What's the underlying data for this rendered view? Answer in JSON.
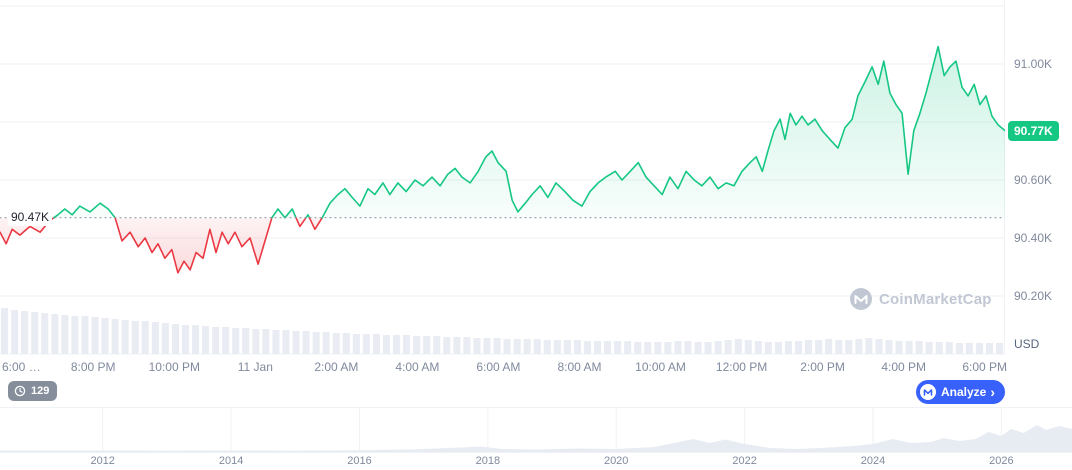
{
  "chart": {
    "baseline_label": "90.47K",
    "last_price_label": "90.77K",
    "unit_label": "USD",
    "watermark_text": "CoinMarketCap",
    "colors": {
      "up": "#16c784",
      "down": "#ea3943",
      "grid": "#eff2f5",
      "axis_text": "#808a9d",
      "baseline_text": "#222531",
      "volume_bar": "#e9edf3",
      "nav_fill": "#e7ebf2",
      "analyze_bg": "#3861fb",
      "watchers_bg": "rgba(100,110,128,0.78)",
      "watermark": "#c1c8d3",
      "badge_bg": "#16c784"
    }
  },
  "controls": {
    "watchers_count": "129",
    "analyze_label": "Analyze",
    "analyze_chevron": "›"
  },
  "icons": {
    "watchers_badge": "clock-icon",
    "analyze_button": "cmc-logo-icon",
    "analyze_chevron": "chevron-right-icon",
    "watermark": "cmc-logo-icon"
  },
  "chart_data": [
    {
      "type": "area",
      "name": "price",
      "title": "",
      "x_unit": "hours since Jan 10 6:00 PM",
      "xlim": [
        -0.3,
        24.5
      ],
      "ylim": [
        90.0,
        91.2
      ],
      "baseline": 90.47,
      "last": 90.77,
      "gridlines": [
        91.2,
        91.0,
        90.8,
        90.6,
        90.4,
        90.2,
        90.0
      ],
      "y_ticks": [
        {
          "v": 91.0,
          "label": "91.00K"
        },
        {
          "v": 90.6,
          "label": "90.60K"
        },
        {
          "v": 90.4,
          "label": "90.40K"
        },
        {
          "v": 90.2,
          "label": "90.20K"
        }
      ],
      "x_ticks": [
        {
          "t": 0,
          "label": "6:00 …",
          "align": "left"
        },
        {
          "t": 2,
          "label": "8:00 PM"
        },
        {
          "t": 4,
          "label": "10:00 PM"
        },
        {
          "t": 6,
          "label": "11 Jan"
        },
        {
          "t": 8,
          "label": "2:00 AM"
        },
        {
          "t": 10,
          "label": "4:00 AM"
        },
        {
          "t": 12,
          "label": "6:00 AM"
        },
        {
          "t": 14,
          "label": "8:00 AM"
        },
        {
          "t": 16,
          "label": "10:00 AM"
        },
        {
          "t": 18,
          "label": "12:00 PM"
        },
        {
          "t": 20,
          "label": "2:00 PM"
        },
        {
          "t": 22,
          "label": "4:00 PM"
        },
        {
          "t": 24,
          "label": "6:00 PM"
        }
      ],
      "points": [
        [
          -0.3,
          90.42
        ],
        [
          -0.15,
          90.38
        ],
        [
          0,
          90.43
        ],
        [
          0.19,
          90.41
        ],
        [
          0.44,
          90.44
        ],
        [
          0.69,
          90.42
        ],
        [
          0.93,
          90.46
        ],
        [
          1.13,
          90.48
        ],
        [
          1.3,
          90.5
        ],
        [
          1.48,
          90.48
        ],
        [
          1.67,
          90.51
        ],
        [
          1.92,
          90.49
        ],
        [
          2.17,
          90.52
        ],
        [
          2.37,
          90.5
        ],
        [
          2.54,
          90.47
        ],
        [
          2.71,
          90.39
        ],
        [
          2.91,
          90.42
        ],
        [
          3.11,
          90.37
        ],
        [
          3.28,
          90.4
        ],
        [
          3.45,
          90.35
        ],
        [
          3.6,
          90.38
        ],
        [
          3.77,
          90.33
        ],
        [
          3.94,
          90.36
        ],
        [
          4.09,
          90.28
        ],
        [
          4.24,
          90.32
        ],
        [
          4.39,
          90.29
        ],
        [
          4.54,
          90.35
        ],
        [
          4.71,
          90.33
        ],
        [
          4.88,
          90.43
        ],
        [
          5.03,
          90.35
        ],
        [
          5.18,
          90.42
        ],
        [
          5.33,
          90.38
        ],
        [
          5.5,
          90.42
        ],
        [
          5.67,
          90.37
        ],
        [
          5.87,
          90.4
        ],
        [
          6.07,
          90.31
        ],
        [
          6.24,
          90.39
        ],
        [
          6.41,
          90.47
        ],
        [
          6.56,
          90.5
        ],
        [
          6.73,
          90.47
        ],
        [
          6.91,
          90.5
        ],
        [
          7.1,
          90.44
        ],
        [
          7.3,
          90.48
        ],
        [
          7.47,
          90.43
        ],
        [
          7.65,
          90.47
        ],
        [
          7.84,
          90.52
        ],
        [
          8.04,
          90.55
        ],
        [
          8.21,
          90.57
        ],
        [
          8.39,
          90.54
        ],
        [
          8.58,
          90.51
        ],
        [
          8.78,
          90.57
        ],
        [
          8.95,
          90.55
        ],
        [
          9.15,
          90.59
        ],
        [
          9.32,
          90.55
        ],
        [
          9.52,
          90.59
        ],
        [
          9.72,
          90.56
        ],
        [
          9.94,
          90.6
        ],
        [
          10.14,
          90.58
        ],
        [
          10.36,
          90.61
        ],
        [
          10.56,
          90.58
        ],
        [
          10.75,
          90.62
        ],
        [
          10.93,
          90.64
        ],
        [
          11.1,
          90.61
        ],
        [
          11.3,
          90.59
        ],
        [
          11.5,
          90.63
        ],
        [
          11.69,
          90.68
        ],
        [
          11.84,
          90.7
        ],
        [
          11.99,
          90.66
        ],
        [
          12.19,
          90.63
        ],
        [
          12.34,
          90.53
        ],
        [
          12.48,
          90.49
        ],
        [
          12.66,
          90.52
        ],
        [
          12.83,
          90.55
        ],
        [
          13.03,
          90.58
        ],
        [
          13.22,
          90.54
        ],
        [
          13.42,
          90.59
        ],
        [
          13.64,
          90.56
        ],
        [
          13.84,
          90.53
        ],
        [
          14.06,
          90.51
        ],
        [
          14.26,
          90.56
        ],
        [
          14.46,
          90.59
        ],
        [
          14.65,
          90.61
        ],
        [
          14.88,
          90.63
        ],
        [
          15.05,
          90.6
        ],
        [
          15.25,
          90.63
        ],
        [
          15.45,
          90.66
        ],
        [
          15.64,
          90.61
        ],
        [
          15.84,
          90.58
        ],
        [
          16.04,
          90.55
        ],
        [
          16.23,
          90.61
        ],
        [
          16.43,
          90.57
        ],
        [
          16.63,
          90.63
        ],
        [
          16.83,
          90.6
        ],
        [
          17.02,
          90.58
        ],
        [
          17.22,
          90.61
        ],
        [
          17.42,
          90.57
        ],
        [
          17.62,
          90.59
        ],
        [
          17.81,
          90.58
        ],
        [
          18.01,
          90.63
        ],
        [
          18.21,
          90.66
        ],
        [
          18.36,
          90.68
        ],
        [
          18.51,
          90.63
        ],
        [
          18.65,
          90.7
        ],
        [
          18.8,
          90.77
        ],
        [
          18.95,
          90.81
        ],
        [
          19.07,
          90.74
        ],
        [
          19.2,
          90.83
        ],
        [
          19.34,
          90.79
        ],
        [
          19.49,
          90.82
        ],
        [
          19.64,
          90.79
        ],
        [
          19.81,
          90.81
        ],
        [
          19.99,
          90.77
        ],
        [
          20.18,
          90.74
        ],
        [
          20.38,
          90.71
        ],
        [
          20.55,
          90.78
        ],
        [
          20.73,
          90.81
        ],
        [
          20.87,
          90.89
        ],
        [
          21.05,
          90.94
        ],
        [
          21.22,
          90.99
        ],
        [
          21.37,
          90.93
        ],
        [
          21.51,
          91.01
        ],
        [
          21.66,
          90.9
        ],
        [
          21.81,
          90.86
        ],
        [
          21.96,
          90.83
        ],
        [
          22.11,
          90.62
        ],
        [
          22.25,
          90.77
        ],
        [
          22.4,
          90.83
        ],
        [
          22.55,
          90.9
        ],
        [
          22.7,
          90.98
        ],
        [
          22.85,
          91.06
        ],
        [
          23,
          90.96
        ],
        [
          23.14,
          90.99
        ],
        [
          23.29,
          91.01
        ],
        [
          23.44,
          90.92
        ],
        [
          23.59,
          90.89
        ],
        [
          23.74,
          90.93
        ],
        [
          23.88,
          90.86
        ],
        [
          24.03,
          90.89
        ],
        [
          24.18,
          90.82
        ],
        [
          24.33,
          90.79
        ],
        [
          24.5,
          90.77
        ]
      ]
    },
    {
      "type": "bar",
      "name": "volume",
      "y_unit": "relative height (px, no axis shown)",
      "values": [
        46,
        44,
        43,
        42,
        41,
        40,
        39,
        38,
        38,
        37,
        36,
        35,
        34,
        33,
        33,
        32,
        31,
        30,
        29,
        29,
        28,
        27,
        27,
        26,
        26,
        25,
        25,
        24,
        24,
        23,
        23,
        22,
        22,
        21,
        21,
        20,
        20,
        20,
        19,
        19,
        19,
        18,
        18,
        18,
        17,
        17,
        17,
        16,
        16,
        16,
        15,
        15,
        15,
        15,
        14,
        14,
        14,
        14,
        13,
        13,
        13,
        13,
        13,
        12,
        12,
        12,
        12,
        13,
        13,
        12,
        12,
        13,
        14,
        15,
        14,
        13,
        12,
        12,
        13,
        13,
        14,
        14,
        15,
        14,
        14,
        15,
        16,
        15,
        14,
        13,
        13,
        13,
        12,
        12,
        12,
        11,
        11,
        11,
        11,
        11
      ]
    },
    {
      "type": "area",
      "name": "all-time-history-navigator",
      "x_unit": "year",
      "xlim": [
        2010.4,
        2027.1
      ],
      "y_unit": "relative height (px, no axis shown)",
      "x_ticks": [
        2012,
        2014,
        2016,
        2018,
        2020,
        2022,
        2024,
        2026
      ],
      "points": [
        [
          2010.4,
          1.5
        ],
        [
          2012,
          1.5
        ],
        [
          2013,
          1.2
        ],
        [
          2014,
          1.5
        ],
        [
          2015,
          1.2
        ],
        [
          2016,
          1.8
        ],
        [
          2016.8,
          2.5
        ],
        [
          2017.4,
          4
        ],
        [
          2017.9,
          5.5
        ],
        [
          2018.2,
          3
        ],
        [
          2018.8,
          2.5
        ],
        [
          2019.4,
          3.5
        ],
        [
          2020,
          3
        ],
        [
          2020.6,
          5
        ],
        [
          2020.9,
          9
        ],
        [
          2021.2,
          13
        ],
        [
          2021.45,
          9
        ],
        [
          2021.7,
          12.5
        ],
        [
          2022,
          8
        ],
        [
          2022.4,
          4
        ],
        [
          2022.8,
          3
        ],
        [
          2023.2,
          4
        ],
        [
          2023.7,
          6
        ],
        [
          2024,
          8
        ],
        [
          2024.3,
          13
        ],
        [
          2024.6,
          9
        ],
        [
          2024.9,
          10
        ],
        [
          2025.1,
          14
        ],
        [
          2025.35,
          11
        ],
        [
          2025.6,
          13
        ],
        [
          2025.8,
          20
        ],
        [
          2026,
          16
        ],
        [
          2026.15,
          23
        ],
        [
          2026.35,
          19
        ],
        [
          2026.55,
          27
        ],
        [
          2026.7,
          22
        ],
        [
          2026.9,
          26
        ],
        [
          2027.1,
          23
        ]
      ]
    }
  ]
}
